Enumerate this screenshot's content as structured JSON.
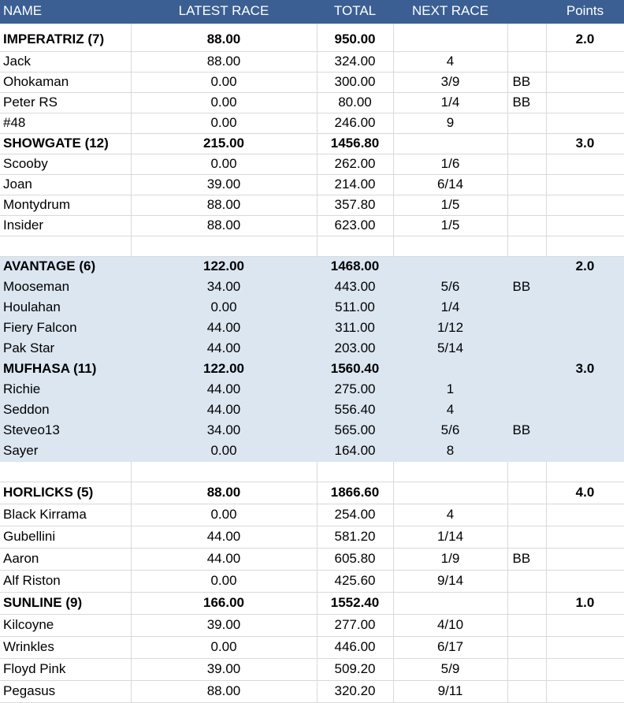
{
  "headers": [
    "NAME",
    "LATEST RACE",
    "TOTAL",
    "NEXT RACE",
    "",
    "Points"
  ],
  "rows": [
    {
      "name": "IMPERATRIZ (7)",
      "latest": "88.00",
      "total": "950.00",
      "next": "",
      "bb": "",
      "points": "2.0"
    },
    {
      "name": "Jack",
      "latest": "88.00",
      "total": "324.00",
      "next": "4",
      "bb": "",
      "points": ""
    },
    {
      "name": "Ohokaman",
      "latest": "0.00",
      "total": "300.00",
      "next": "3/9",
      "bb": "BB",
      "points": ""
    },
    {
      "name": "Peter RS",
      "latest": "0.00",
      "total": "80.00",
      "next": "1/4",
      "bb": "BB",
      "points": ""
    },
    {
      "name": "#48",
      "latest": "0.00",
      "total": "246.00",
      "next": "9",
      "bb": "",
      "points": ""
    },
    {
      "name": "SHOWGATE (12)",
      "latest": "215.00",
      "total": "1456.80",
      "next": "",
      "bb": "",
      "points": "3.0"
    },
    {
      "name": "Scooby",
      "latest": "0.00",
      "total": "262.00",
      "next": "1/6",
      "bb": "",
      "points": ""
    },
    {
      "name": "Joan",
      "latest": "39.00",
      "total": "214.00",
      "next": "6/14",
      "bb": "",
      "points": ""
    },
    {
      "name": "Montydrum",
      "latest": "88.00",
      "total": "357.80",
      "next": "1/5",
      "bb": "",
      "points": ""
    },
    {
      "name": "Insider",
      "latest": "88.00",
      "total": "623.00",
      "next": "1/5",
      "bb": "",
      "points": ""
    },
    {
      "name": "",
      "latest": "",
      "total": "",
      "next": "",
      "bb": "",
      "points": ""
    },
    {
      "name": "AVANTAGE (6)",
      "latest": "122.00",
      "total": "1468.00",
      "next": "",
      "bb": "",
      "points": "2.0"
    },
    {
      "name": "Mooseman",
      "latest": "34.00",
      "total": "443.00",
      "next": "5/6",
      "bb": "BB",
      "points": ""
    },
    {
      "name": "Houlahan",
      "latest": "0.00",
      "total": "511.00",
      "next": "1/4",
      "bb": "",
      "points": ""
    },
    {
      "name": "Fiery Falcon",
      "latest": "44.00",
      "total": "311.00",
      "next": "1/12",
      "bb": "",
      "points": ""
    },
    {
      "name": "Pak Star",
      "latest": "44.00",
      "total": "203.00",
      "next": "5/14",
      "bb": "",
      "points": ""
    },
    {
      "name": "MUFHASA (11)",
      "latest": "122.00",
      "total": "1560.40",
      "next": "",
      "bb": "",
      "points": "3.0"
    },
    {
      "name": "Richie",
      "latest": "44.00",
      "total": "275.00",
      "next": "1",
      "bb": "",
      "points": ""
    },
    {
      "name": "Seddon",
      "latest": "44.00",
      "total": "556.40",
      "next": "4",
      "bb": "",
      "points": ""
    },
    {
      "name": "Steveo13",
      "latest": "34.00",
      "total": "565.00",
      "next": "5/6",
      "bb": "BB",
      "points": ""
    },
    {
      "name": "Sayer",
      "latest": "0.00",
      "total": "164.00",
      "next": "8",
      "bb": "",
      "points": ""
    },
    {
      "name": "",
      "latest": "",
      "total": "",
      "next": "",
      "bb": "",
      "points": ""
    },
    {
      "name": "HORLICKS (5)",
      "latest": "88.00",
      "total": "1866.60",
      "next": "",
      "bb": "",
      "points": "4.0"
    },
    {
      "name": "Black Kirrama",
      "latest": "0.00",
      "total": "254.00",
      "next": "4",
      "bb": "",
      "points": ""
    },
    {
      "name": "Gubellini",
      "latest": "44.00",
      "total": "581.20",
      "next": "1/14",
      "bb": "",
      "points": ""
    },
    {
      "name": "Aaron",
      "latest": "44.00",
      "total": "605.80",
      "next": "1/9",
      "bb": "BB",
      "points": ""
    },
    {
      "name": "Alf Riston",
      "latest": "0.00",
      "total": "425.60",
      "next": "9/14",
      "bb": "",
      "points": ""
    },
    {
      "name": "SUNLINE (9)",
      "latest": "166.00",
      "total": "1552.40",
      "next": "",
      "bb": "",
      "points": "1.0"
    },
    {
      "name": "Kilcoyne",
      "latest": "39.00",
      "total": "277.00",
      "next": "4/10",
      "bb": "",
      "points": ""
    },
    {
      "name": "Wrinkles",
      "latest": "0.00",
      "total": "446.00",
      "next": "6/17",
      "bb": "",
      "points": ""
    },
    {
      "name": "Floyd Pink",
      "latest": "39.00",
      "total": "509.20",
      "next": "5/9",
      "bb": "",
      "points": ""
    },
    {
      "name": "Pegasus",
      "latest": "88.00",
      "total": "320.20",
      "next": "9/11",
      "bb": "",
      "points": ""
    }
  ],
  "colors": {
    "header_bg": "#3b5f93",
    "header_text": "#ffffff",
    "shade_bg": "#dce6f1",
    "grid": "#d9d9d9"
  }
}
